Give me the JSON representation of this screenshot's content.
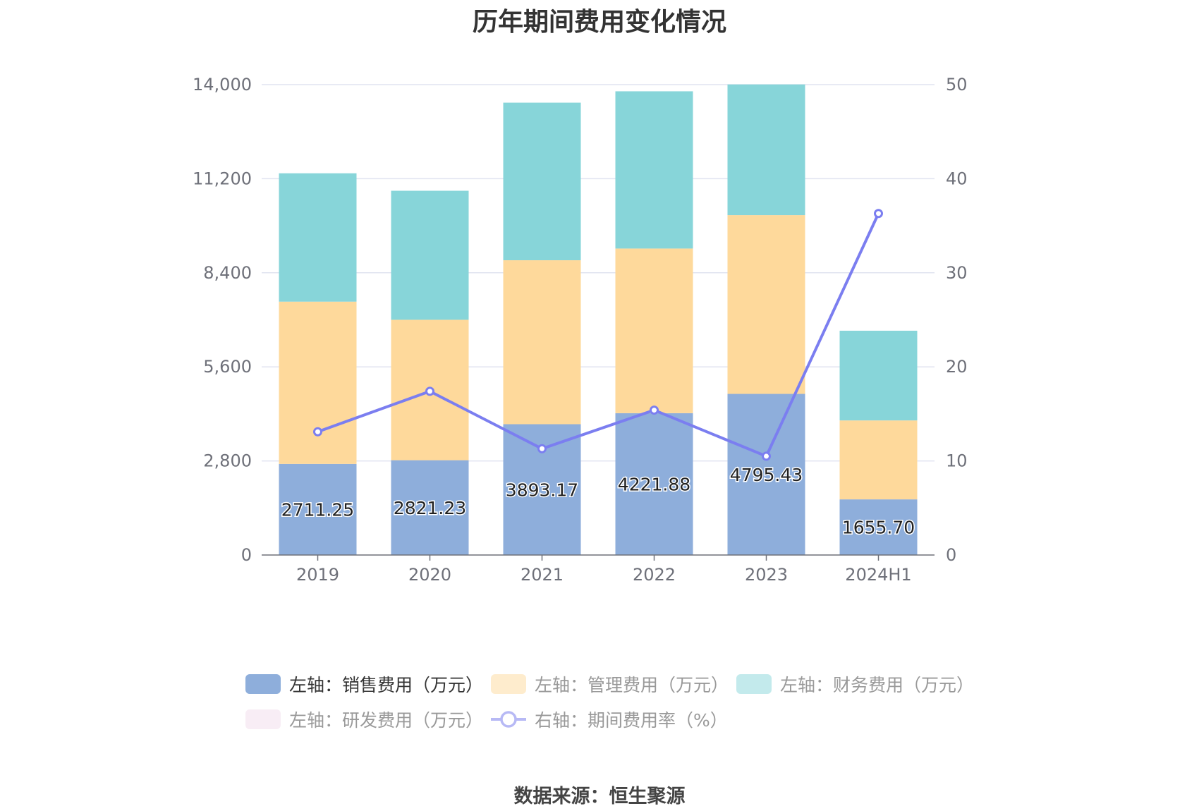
{
  "title": "历年期间费用变化情况",
  "source": "数据来源：恒生聚源",
  "chart_data": {
    "type": "bar",
    "stacked": true,
    "title": "历年期间费用变化情况",
    "categories": [
      "2019",
      "2020",
      "2021",
      "2022",
      "2023",
      "2024H1"
    ],
    "y_left": {
      "ticks": [
        "0",
        "2,800",
        "5,600",
        "8,400",
        "11,200",
        "14,000"
      ],
      "lim": [
        0,
        14000
      ]
    },
    "y_right": {
      "ticks": [
        "0",
        "10",
        "20",
        "30",
        "40",
        "50"
      ],
      "lim": [
        0,
        50
      ]
    },
    "grid": true,
    "legend_position": "bottom",
    "series": [
      {
        "name": "左轴：销售费用（万元）",
        "axis": "left",
        "type": "bar",
        "color": "#8eaedb",
        "values": [
          2711.25,
          2821.23,
          3893.17,
          4221.88,
          4795.43,
          1655.7
        ],
        "labels": [
          "2711.25",
          "2821.23",
          "3893.17",
          "4221.88",
          "4795.43",
          "1655.70"
        ]
      },
      {
        "name": "左轴：管理费用（万元）",
        "axis": "left",
        "type": "bar",
        "color": "#fed99b",
        "values": [
          4830,
          4180,
          4880,
          4900,
          5320,
          2350
        ]
      },
      {
        "name": "左轴：财务费用（万元）",
        "axis": "left",
        "type": "bar",
        "color": "#87d5d9",
        "values": [
          3820,
          3840,
          4690,
          4680,
          3890,
          2670
        ]
      },
      {
        "name": "左轴：研发费用（万元）",
        "axis": "left",
        "type": "bar",
        "color": "#f1dcec",
        "values": [
          0,
          0,
          0,
          0,
          0,
          0
        ]
      },
      {
        "name": "右轴：期间费用率（%）",
        "axis": "right",
        "type": "line",
        "color": "#7b7ef0",
        "values": [
          13.1,
          17.4,
          11.3,
          15.4,
          10.5,
          36.3
        ]
      }
    ]
  },
  "legend_text_colors": [
    "#333333",
    "#999999",
    "#999999",
    "#999999",
    "#999999"
  ]
}
